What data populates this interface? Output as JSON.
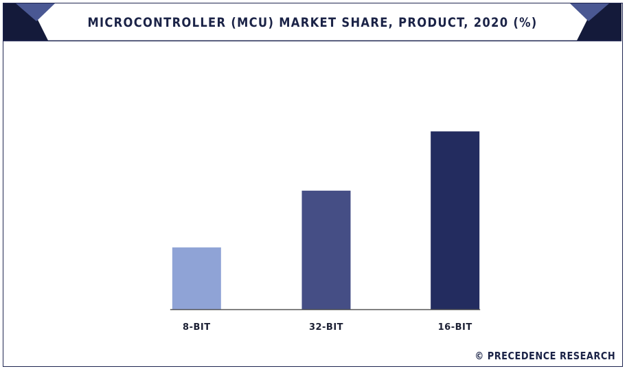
{
  "chart_data": {
    "type": "bar",
    "title": "MICROCONTROLLER (MCU) MARKET SHARE, PRODUCT, 2020 (%)",
    "categories": [
      "8-BIT",
      "32-BIT",
      "16-BIT"
    ],
    "values": [
      24,
      46,
      69
    ],
    "colors": [
      "#8fa3d6",
      "#454e85",
      "#232c5f"
    ],
    "ylim": [
      0,
      100
    ],
    "grid": false,
    "xlabel": "",
    "ylabel": ""
  },
  "branding": {
    "watermark": "© PRECEDENCE RESEARCH",
    "accent_dark": "#1b2347",
    "accent_mid": "#3d4a8a"
  }
}
